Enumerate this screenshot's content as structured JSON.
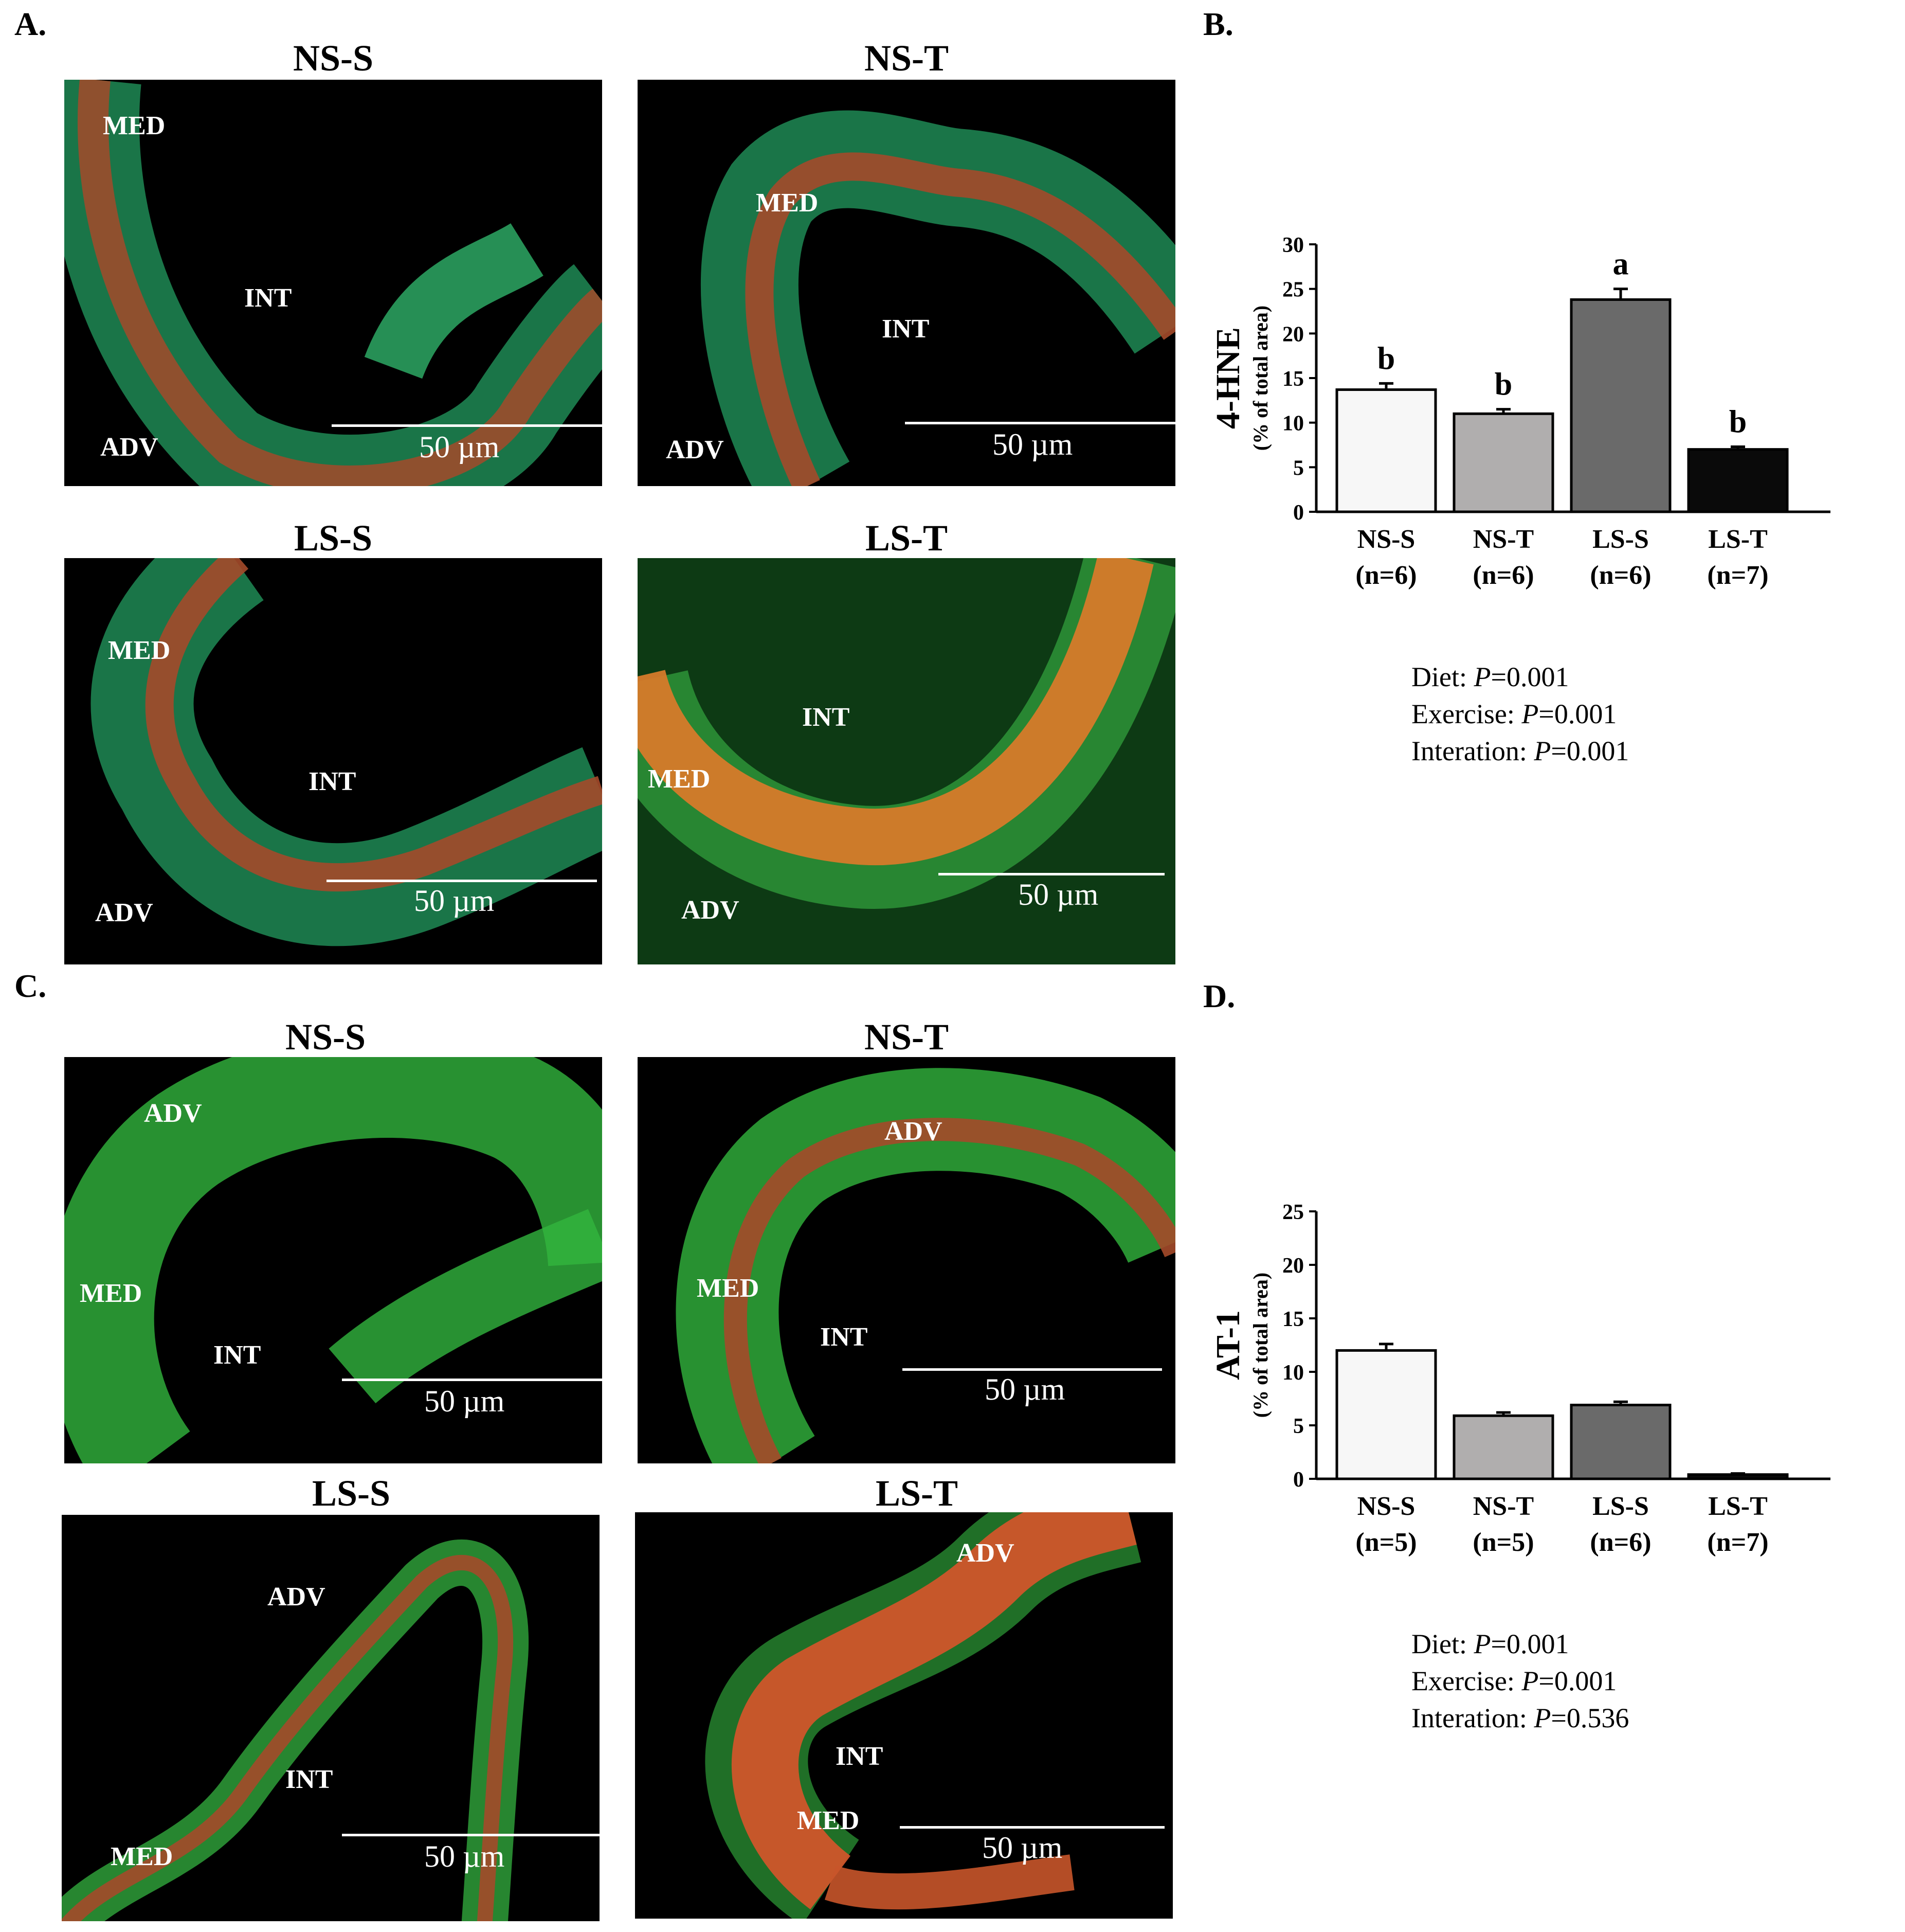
{
  "panels": {
    "A": {
      "letter": "A.",
      "images": [
        {
          "title": "NS-S",
          "labels": {
            "med": "MED",
            "int": "INT",
            "adv": "ADV"
          },
          "scale": "50 µm"
        },
        {
          "title": "NS-T",
          "labels": {
            "med": "MED",
            "int": "INT",
            "adv": "ADV"
          },
          "scale": "50 µm"
        },
        {
          "title": "LS-S",
          "labels": {
            "med": "MED",
            "int": "INT",
            "adv": "ADV"
          },
          "scale": "50 µm"
        },
        {
          "title": "LS-T",
          "labels": {
            "med": "MED",
            "int": "INT",
            "adv": "ADV"
          },
          "scale": "50 µm"
        }
      ]
    },
    "B": {
      "letter": "B.",
      "stats": [
        {
          "prefix": "Diet: ",
          "p": "P",
          "value": "=0.001"
        },
        {
          "prefix": "Exercise: ",
          "p": "P",
          "value": "=0.001"
        },
        {
          "prefix": "Interation: ",
          "p": "P",
          "value": "=0.001"
        }
      ]
    },
    "C": {
      "letter": "C.",
      "images": [
        {
          "title": "NS-S",
          "labels": {
            "adv": "ADV",
            "med": "MED",
            "int": "INT"
          },
          "scale": "50 µm"
        },
        {
          "title": "NS-T",
          "labels": {
            "adv": "ADV",
            "med": "MED",
            "int": "INT"
          },
          "scale": "50 µm"
        },
        {
          "title": "LS-S",
          "labels": {
            "adv": "ADV",
            "int": "INT",
            "med": "MED"
          },
          "scale": "50 µm"
        },
        {
          "title": "LS-T",
          "labels": {
            "adv": "ADV",
            "int": "INT",
            "med": "MED"
          },
          "scale": "50 µm"
        }
      ]
    },
    "D": {
      "letter": "D.",
      "stats": [
        {
          "prefix": "Diet: ",
          "p": "P",
          "value": "=0.001"
        },
        {
          "prefix": "Exercise: ",
          "p": "P",
          "value": "=0.001"
        },
        {
          "prefix": "Interation: ",
          "p": "P",
          "value": "=0.536"
        }
      ]
    }
  },
  "chart_data": [
    {
      "type": "bar",
      "panel": "B",
      "ylabel": "4-HNE",
      "ylabel_sub": "(% of  total area)",
      "ylim": [
        0,
        30
      ],
      "yticks": [
        0,
        5,
        10,
        15,
        20,
        25,
        30
      ],
      "categories": [
        "NS-S",
        "NS-T",
        "LS-S",
        "LS-T"
      ],
      "category_n": [
        "(n=6)",
        "(n=6)",
        "(n=6)",
        "(n=7)"
      ],
      "values": [
        13.7,
        11.0,
        23.8,
        7.0
      ],
      "errors": [
        0.7,
        0.5,
        1.2,
        0.3
      ],
      "significance": [
        "b",
        "b",
        "a",
        "b"
      ],
      "colors": [
        "#f7f7f7",
        "#b0aeae",
        "#6a6a6a",
        "#0a0a0a"
      ]
    },
    {
      "type": "bar",
      "panel": "D",
      "ylabel": "AT-1",
      "ylabel_sub": "(% of  total area)",
      "ylim": [
        0,
        25
      ],
      "yticks": [
        0,
        5,
        10,
        15,
        20,
        25
      ],
      "categories": [
        "NS-S",
        "NS-T",
        "LS-S",
        "LS-T"
      ],
      "category_n": [
        "(n=5)",
        "(n=5)",
        "(n=6)",
        "(n=7)"
      ],
      "values": [
        12.0,
        5.9,
        6.9,
        0.4
      ],
      "errors": [
        0.6,
        0.3,
        0.3,
        0.1
      ],
      "significance": [
        "",
        "",
        "",
        ""
      ],
      "colors": [
        "#f7f7f7",
        "#b0aeae",
        "#6a6a6a",
        "#0a0a0a"
      ]
    }
  ]
}
